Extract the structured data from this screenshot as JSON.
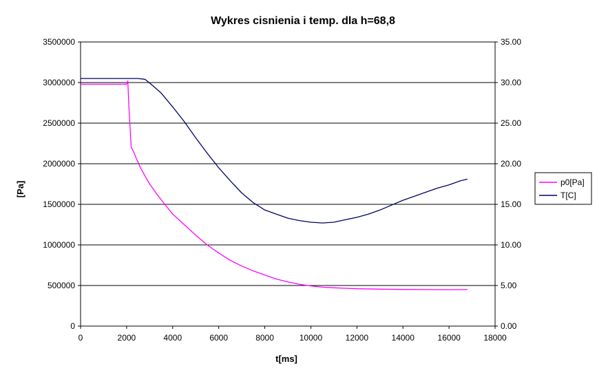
{
  "chart_data": {
    "type": "line",
    "title": "Wykres cisnienia i temp. dla h=68,8",
    "xlabel": "t[ms]",
    "ylabel": "[Pa]",
    "y2label": "",
    "xlim": [
      0,
      18000
    ],
    "ylim": [
      0,
      3500000
    ],
    "y2lim": [
      0,
      35
    ],
    "x_ticks": [
      "0",
      "2000",
      "4000",
      "6000",
      "8000",
      "10000",
      "12000",
      "14000",
      "16000",
      "18000"
    ],
    "y_ticks": [
      "0",
      "500000",
      "1000000",
      "1500000",
      "2000000",
      "2500000",
      "3000000",
      "3500000"
    ],
    "y2_ticks": [
      "0.00",
      "5.00",
      "10.00",
      "15.00",
      "20.00",
      "25.00",
      "30.00",
      "35.00"
    ],
    "grid": "horizontal major gridlines",
    "legend_position": "right",
    "series": [
      {
        "name": "p0[Pa]",
        "axis": "left",
        "color": "#ff00ff",
        "x": [
          0,
          500,
          1000,
          1500,
          2000,
          2050,
          2100,
          2150,
          2200,
          2300,
          2400,
          2600,
          2800,
          3000,
          3300,
          3600,
          4000,
          4500,
          5000,
          5500,
          6000,
          6500,
          7000,
          7500,
          8000,
          8500,
          9000,
          9500,
          10000,
          10500,
          11000,
          11500,
          12000,
          13000,
          14000,
          15000,
          16000,
          16800
        ],
        "values": [
          2980000,
          2980000,
          2980000,
          2980000,
          2980000,
          3020000,
          2700000,
          2450000,
          2200000,
          2150000,
          2080000,
          1950000,
          1850000,
          1750000,
          1630000,
          1520000,
          1380000,
          1250000,
          1120000,
          1000000,
          900000,
          810000,
          740000,
          680000,
          630000,
          580000,
          545000,
          515000,
          495000,
          480000,
          472000,
          466000,
          460000,
          455000,
          452000,
          450000,
          448000,
          450000
        ]
      },
      {
        "name": "T[C]",
        "axis": "right",
        "color": "#000066",
        "x": [
          0,
          500,
          1000,
          1500,
          2000,
          2500,
          2800,
          3100,
          3500,
          4000,
          4500,
          5000,
          5500,
          6000,
          6500,
          7000,
          7500,
          8000,
          8500,
          9000,
          9500,
          10000,
          10500,
          11000,
          11500,
          12000,
          12500,
          13000,
          13500,
          14000,
          14500,
          15000,
          15500,
          16000,
          16500,
          16800
        ],
        "values": [
          30.5,
          30.5,
          30.5,
          30.5,
          30.5,
          30.5,
          30.4,
          29.7,
          28.7,
          27.0,
          25.2,
          23.2,
          21.3,
          19.5,
          17.9,
          16.4,
          15.2,
          14.3,
          13.8,
          13.3,
          13.0,
          12.8,
          12.7,
          12.8,
          13.1,
          13.4,
          13.8,
          14.3,
          14.9,
          15.5,
          16.0,
          16.5,
          17.0,
          17.4,
          17.9,
          18.1
        ]
      }
    ]
  }
}
